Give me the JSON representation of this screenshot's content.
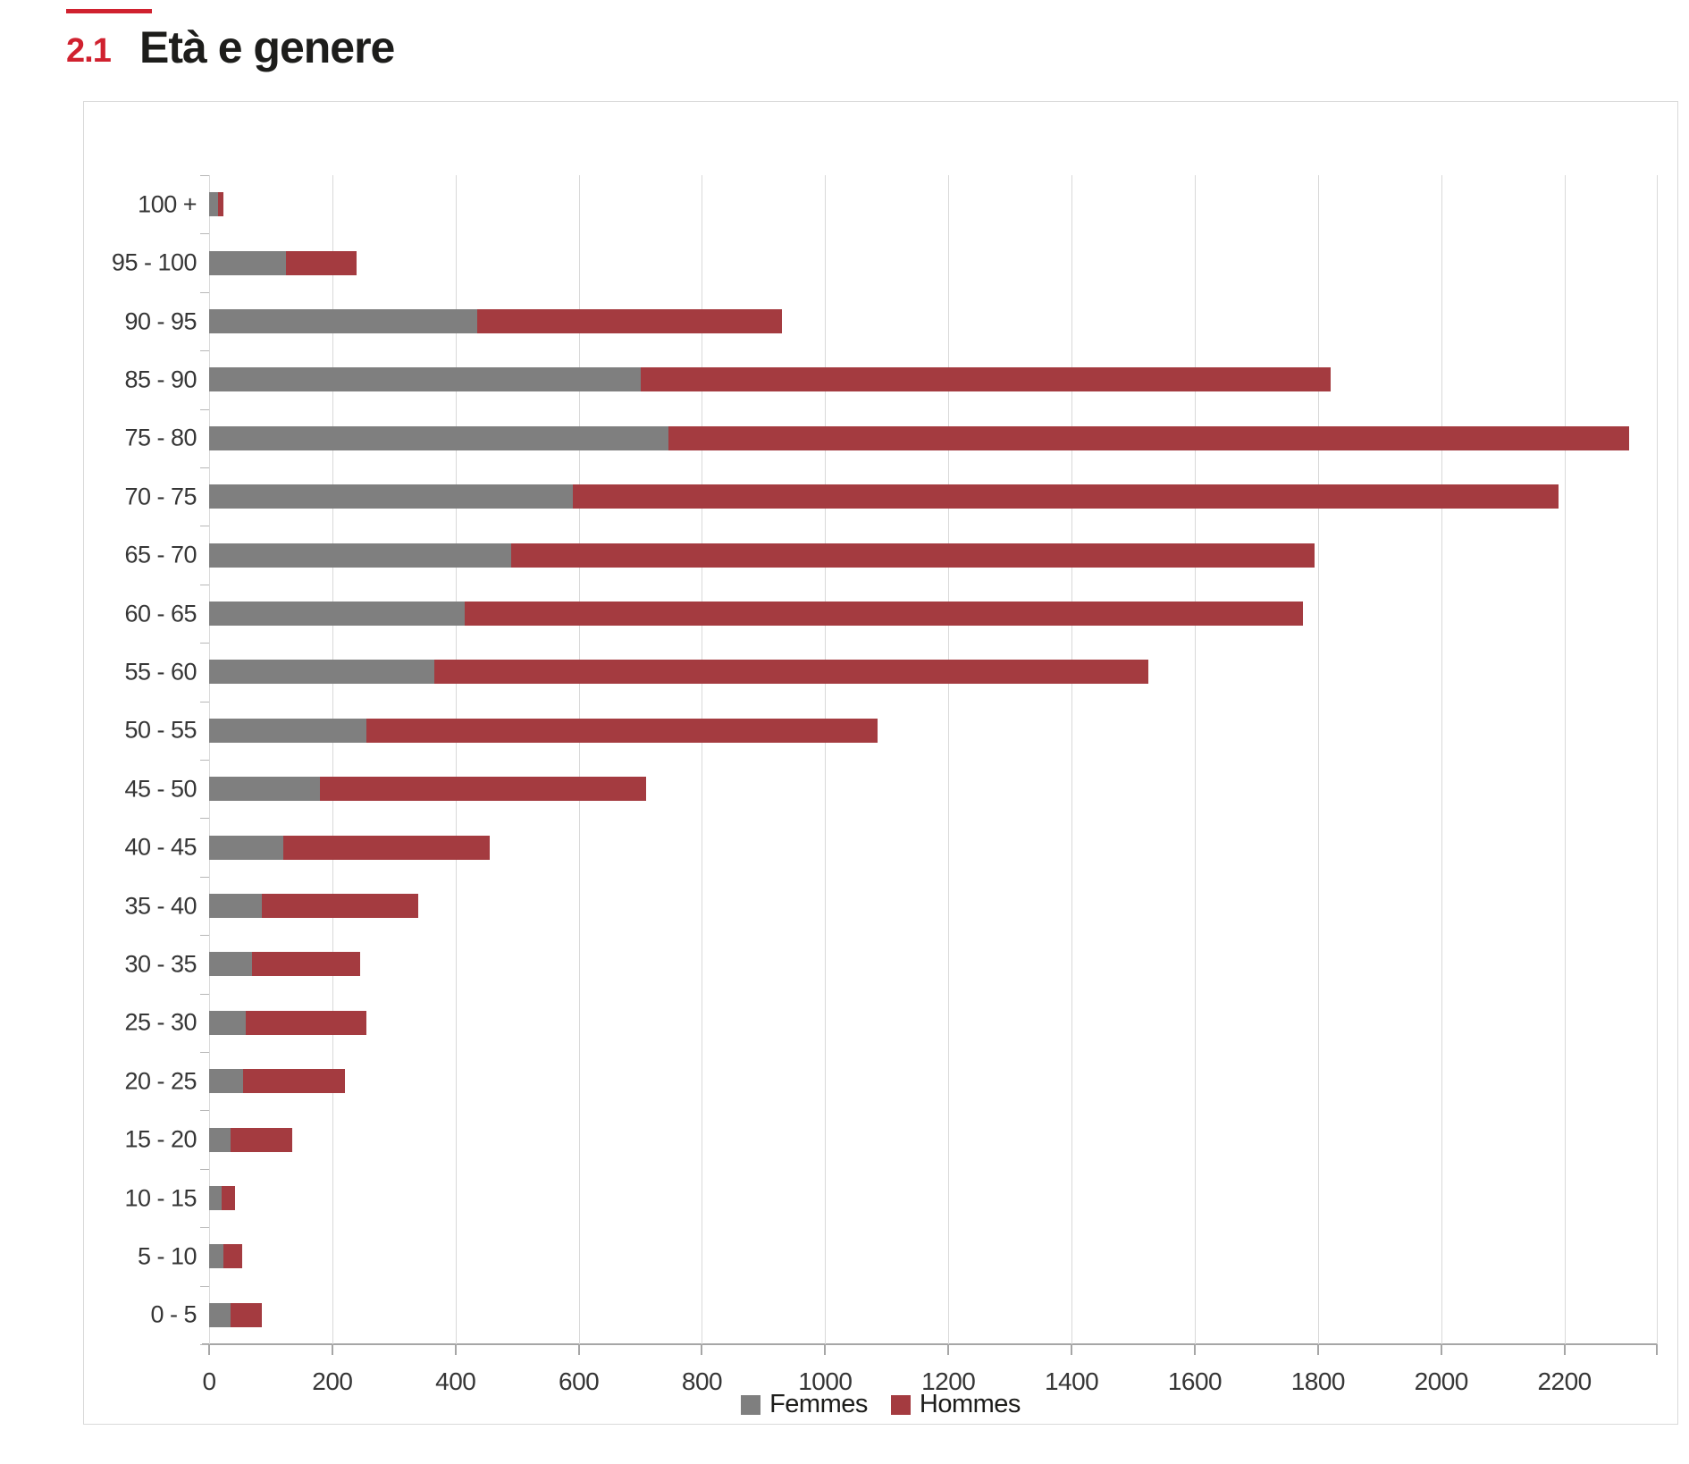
{
  "page": {
    "section_number": "2.1",
    "title": "Età e genere"
  },
  "colors": {
    "accent_red": "#d0212f",
    "bar_gray": "#7f7f7f",
    "bar_red": "#a43b40",
    "gridline": "#d9d9d9",
    "axis_line": "#a6a6a6",
    "label_text": "#363636",
    "title_text": "#1d1d1b"
  },
  "chart_data": {
    "type": "bar",
    "orientation": "horizontal",
    "stacked": true,
    "title": "Età e genere",
    "xlabel": "",
    "ylabel": "",
    "grid": true,
    "legend_position": "bottom-center",
    "categories": [
      "100 +",
      "95 - 100",
      "90 - 95",
      "85 - 90",
      "75 - 80",
      "70 - 75",
      "65 - 70",
      "60 - 65",
      "55 - 60",
      "50 - 55",
      "45 - 50",
      "40 - 45",
      "35 - 40",
      "30 - 35",
      "25 - 30",
      "20 - 25",
      "15 - 20",
      "10 - 15",
      "5 - 10",
      "0 - 5"
    ],
    "series": [
      {
        "name": "Femmes",
        "color": "#7f7f7f",
        "values": [
          15,
          125,
          435,
          700,
          745,
          590,
          490,
          415,
          365,
          255,
          180,
          120,
          85,
          70,
          60,
          55,
          35,
          20,
          23,
          35
        ]
      },
      {
        "name": "Hommes",
        "color": "#a43b40",
        "values": [
          8,
          115,
          495,
          1120,
          1560,
          1600,
          1305,
          1360,
          1160,
          830,
          530,
          335,
          255,
          175,
          195,
          165,
          100,
          22,
          30,
          50
        ]
      }
    ],
    "x_axis": {
      "min": 0,
      "max": 2350,
      "ticks": [
        0,
        200,
        400,
        600,
        800,
        1000,
        1200,
        1400,
        1600,
        1800,
        2000,
        2200
      ]
    }
  }
}
